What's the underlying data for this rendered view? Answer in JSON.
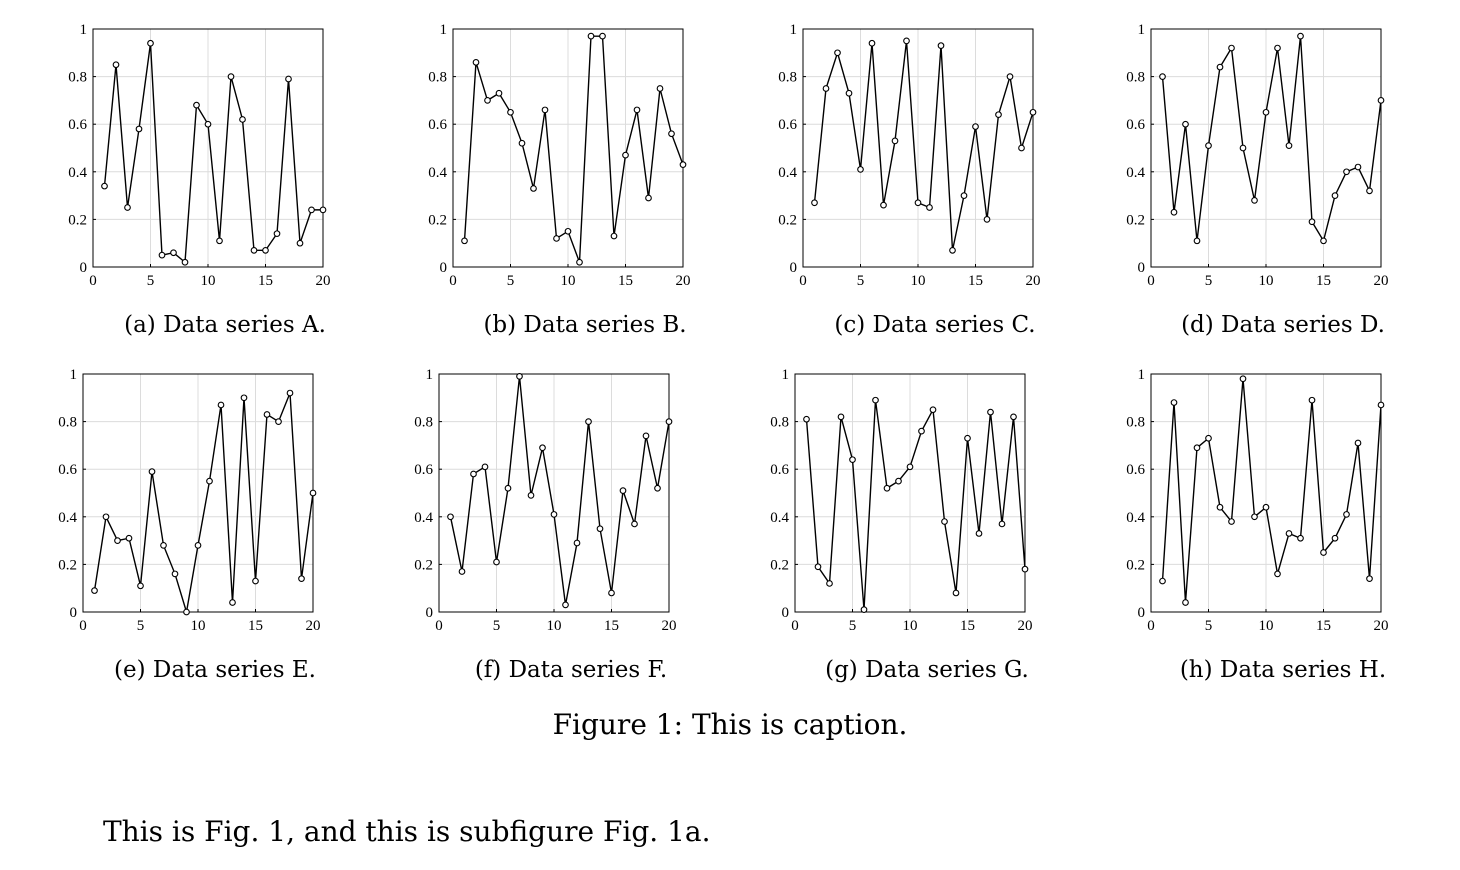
{
  "figure": {
    "caption": "Figure 1: This is caption.",
    "reference_text": "This is Fig. 1, and this is subfigure Fig. 1a."
  },
  "chart_data": [
    {
      "type": "line",
      "caption": "(a) Data series A.",
      "x": [
        1,
        2,
        3,
        4,
        5,
        6,
        7,
        8,
        9,
        10,
        11,
        12,
        13,
        14,
        15,
        16,
        17,
        18,
        19,
        20
      ],
      "y": [
        0.34,
        0.85,
        0.25,
        0.58,
        0.94,
        0.05,
        0.06,
        0.02,
        0.68,
        0.6,
        0.11,
        0.8,
        0.62,
        0.07,
        0.07,
        0.14,
        0.79,
        0.1,
        0.24,
        0.24
      ],
      "xlim": [
        0,
        20
      ],
      "ylim": [
        0,
        1
      ],
      "xticks": [
        "0",
        "5",
        "10",
        "15",
        "20"
      ],
      "yticks": [
        "0",
        "0.2",
        "0.4",
        "0.6",
        "0.8",
        "1"
      ],
      "grid": true,
      "marker": "circle"
    },
    {
      "type": "line",
      "caption": "(b) Data series B.",
      "x": [
        1,
        2,
        3,
        4,
        5,
        6,
        7,
        8,
        9,
        10,
        11,
        12,
        13,
        14,
        15,
        16,
        17,
        18,
        19,
        20
      ],
      "y": [
        0.11,
        0.86,
        0.7,
        0.73,
        0.65,
        0.52,
        0.33,
        0.66,
        0.12,
        0.15,
        0.02,
        0.97,
        0.97,
        0.13,
        0.47,
        0.66,
        0.29,
        0.75,
        0.56,
        0.43
      ],
      "xlim": [
        0,
        20
      ],
      "ylim": [
        0,
        1
      ],
      "xticks": [
        "0",
        "5",
        "10",
        "15",
        "20"
      ],
      "yticks": [
        "0",
        "0.2",
        "0.4",
        "0.6",
        "0.8",
        "1"
      ],
      "grid": true,
      "marker": "circle"
    },
    {
      "type": "line",
      "caption": "(c) Data series C.",
      "x": [
        1,
        2,
        3,
        4,
        5,
        6,
        7,
        8,
        9,
        10,
        11,
        12,
        13,
        14,
        15,
        16,
        17,
        18,
        19,
        20
      ],
      "y": [
        0.27,
        0.75,
        0.9,
        0.73,
        0.41,
        0.94,
        0.26,
        0.53,
        0.95,
        0.27,
        0.25,
        0.93,
        0.07,
        0.3,
        0.59,
        0.2,
        0.64,
        0.8,
        0.5,
        0.65
      ],
      "xlim": [
        0,
        20
      ],
      "ylim": [
        0,
        1
      ],
      "xticks": [
        "0",
        "5",
        "10",
        "15",
        "20"
      ],
      "yticks": [
        "0",
        "0.2",
        "0.4",
        "0.6",
        "0.8",
        "1"
      ],
      "grid": true,
      "marker": "circle"
    },
    {
      "type": "line",
      "caption": "(d) Data series D.",
      "x": [
        1,
        2,
        3,
        4,
        5,
        6,
        7,
        8,
        9,
        10,
        11,
        12,
        13,
        14,
        15,
        16,
        17,
        18,
        19,
        20
      ],
      "y": [
        0.8,
        0.23,
        0.6,
        0.11,
        0.51,
        0.84,
        0.92,
        0.5,
        0.28,
        0.65,
        0.92,
        0.51,
        0.97,
        0.19,
        0.11,
        0.3,
        0.4,
        0.42,
        0.32,
        0.7
      ],
      "xlim": [
        0,
        20
      ],
      "ylim": [
        0,
        1
      ],
      "xticks": [
        "0",
        "5",
        "10",
        "15",
        "20"
      ],
      "yticks": [
        "0",
        "0.2",
        "0.4",
        "0.6",
        "0.8",
        "1"
      ],
      "grid": true,
      "marker": "circle"
    },
    {
      "type": "line",
      "caption": "(e) Data series E.",
      "x": [
        1,
        2,
        3,
        4,
        5,
        6,
        7,
        8,
        9,
        10,
        11,
        12,
        13,
        14,
        15,
        16,
        17,
        18,
        19,
        20
      ],
      "y": [
        0.09,
        0.4,
        0.3,
        0.31,
        0.11,
        0.59,
        0.28,
        0.16,
        0.0,
        0.28,
        0.55,
        0.87,
        0.04,
        0.9,
        0.13,
        0.83,
        0.8,
        0.92,
        0.14,
        0.5
      ],
      "xlim": [
        0,
        20
      ],
      "ylim": [
        0,
        1
      ],
      "xticks": [
        "0",
        "5",
        "10",
        "15",
        "20"
      ],
      "yticks": [
        "0",
        "0.2",
        "0.4",
        "0.6",
        "0.8",
        "1"
      ],
      "grid": true,
      "marker": "circle"
    },
    {
      "type": "line",
      "caption": "(f) Data series F.",
      "x": [
        1,
        2,
        3,
        4,
        5,
        6,
        7,
        8,
        9,
        10,
        11,
        12,
        13,
        14,
        15,
        16,
        17,
        18,
        19,
        20
      ],
      "y": [
        0.4,
        0.17,
        0.58,
        0.61,
        0.21,
        0.52,
        0.99,
        0.49,
        0.69,
        0.41,
        0.03,
        0.29,
        0.8,
        0.35,
        0.08,
        0.51,
        0.37,
        0.74,
        0.52,
        0.8
      ],
      "xlim": [
        0,
        20
      ],
      "ylim": [
        0,
        1
      ],
      "xticks": [
        "0",
        "5",
        "10",
        "15",
        "20"
      ],
      "yticks": [
        "0",
        "0.2",
        "0.4",
        "0.6",
        "0.8",
        "1"
      ],
      "grid": true,
      "marker": "circle"
    },
    {
      "type": "line",
      "caption": "(g) Data series G.",
      "x": [
        1,
        2,
        3,
        4,
        5,
        6,
        7,
        8,
        9,
        10,
        11,
        12,
        13,
        14,
        15,
        16,
        17,
        18,
        19,
        20
      ],
      "y": [
        0.81,
        0.19,
        0.12,
        0.82,
        0.64,
        0.01,
        0.89,
        0.52,
        0.55,
        0.61,
        0.76,
        0.85,
        0.38,
        0.08,
        0.73,
        0.33,
        0.84,
        0.37,
        0.82,
        0.18
      ],
      "xlim": [
        0,
        20
      ],
      "ylim": [
        0,
        1
      ],
      "xticks": [
        "0",
        "5",
        "10",
        "15",
        "20"
      ],
      "yticks": [
        "0",
        "0.2",
        "0.4",
        "0.6",
        "0.8",
        "1"
      ],
      "grid": true,
      "marker": "circle"
    },
    {
      "type": "line",
      "caption": "(h) Data series H.",
      "x": [
        1,
        2,
        3,
        4,
        5,
        6,
        7,
        8,
        9,
        10,
        11,
        12,
        13,
        14,
        15,
        16,
        17,
        18,
        19,
        20
      ],
      "y": [
        0.13,
        0.88,
        0.04,
        0.69,
        0.73,
        0.44,
        0.38,
        0.98,
        0.4,
        0.44,
        0.16,
        0.33,
        0.31,
        0.89,
        0.25,
        0.31,
        0.41,
        0.71,
        0.14,
        0.87
      ],
      "xlim": [
        0,
        20
      ],
      "ylim": [
        0,
        1
      ],
      "xticks": [
        "0",
        "5",
        "10",
        "15",
        "20"
      ],
      "yticks": [
        "0",
        "0.2",
        "0.4",
        "0.6",
        "0.8",
        "1"
      ],
      "grid": true,
      "marker": "circle"
    }
  ]
}
